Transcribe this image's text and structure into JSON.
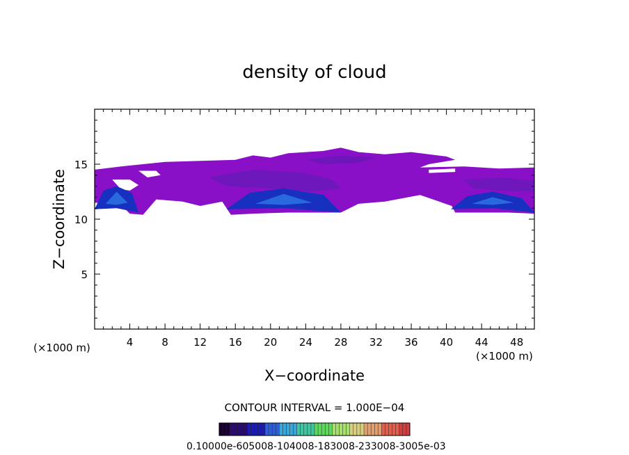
{
  "chart_data": {
    "type": "heatmap",
    "title": "density of cloud",
    "xlabel": "X−coordinate",
    "ylabel": "Z−coordinate",
    "x_unit": "(×1000 m)",
    "xlim": [
      0,
      50
    ],
    "ylim": [
      0,
      20
    ],
    "x_ticks": [
      4,
      8,
      12,
      16,
      20,
      24,
      28,
      32,
      36,
      40,
      44,
      48
    ],
    "y_ticks": [
      5,
      10,
      15
    ],
    "contour_interval_text": "CONTOUR INTERVAL = 1.000E−04",
    "colorbar_labels_text": "0.10000e-605008-104008-183008-233008-3005e-03",
    "colorbar_colors": [
      "#1a0030",
      "#2a0a6e",
      "#1b1bb0",
      "#2f5fd8",
      "#3aa7d8",
      "#40c6a0",
      "#5fd85f",
      "#a8e070",
      "#d8d080",
      "#e0a070",
      "#e06050",
      "#d04040"
    ],
    "cloud_colors": {
      "base": "#8a10c8",
      "mid": "#6a18b8",
      "dense": "#1830c0",
      "core": "#2a70e0"
    },
    "cloud_layer_z_range_km": [
      10.5,
      16.5
    ],
    "dense_regions": [
      {
        "x_range_km": [
          0,
          5
        ],
        "z_range_km": [
          10.5,
          13
        ]
      },
      {
        "x_range_km": [
          15,
          28
        ],
        "z_range_km": [
          10.5,
          12.8
        ]
      },
      {
        "x_range_km": [
          40.5,
          50
        ],
        "z_range_km": [
          10.5,
          12.5
        ]
      }
    ]
  }
}
